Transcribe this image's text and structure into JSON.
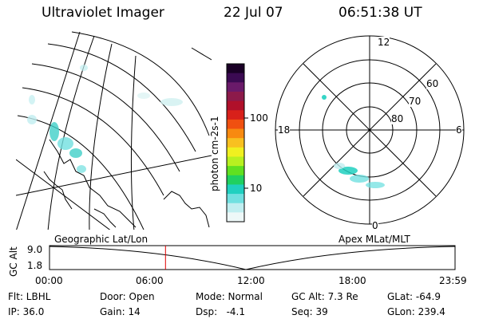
{
  "header": {
    "instrument": "Ultraviolet Imager",
    "date": "22 Jul 07",
    "time": "06:51:38 UT"
  },
  "colorbar": {
    "label": "photon cm-2s-1",
    "ticks": [
      "100",
      "10"
    ],
    "colors": [
      "#1a0026",
      "#3b0a52",
      "#6a1a6a",
      "#8c1a4a",
      "#b0102a",
      "#d8201a",
      "#f05010",
      "#f88a10",
      "#f8c020",
      "#f0f020",
      "#b8f020",
      "#60e020",
      "#20d060",
      "#20d0c0",
      "#70e0e0",
      "#c0eef0",
      "#eef8f8"
    ]
  },
  "polar_plot": {
    "mlt_labels": [
      "12",
      "18",
      "6",
      "0"
    ],
    "lat_labels": [
      "60",
      "70",
      "80"
    ]
  },
  "timeline": {
    "left_label": "Geographic Lat/Lon",
    "right_label": "Apex MLat/MLT",
    "axis_title": "GC Alt",
    "y_ticks": [
      "9.0",
      "1.8"
    ],
    "x_ticks": [
      "00:00",
      "06:00",
      "12:00",
      "18:00",
      "23:59"
    ],
    "marker_time_fraction": 0.286,
    "marker_color": "#e00000"
  },
  "footer": {
    "row1": {
      "filter": "Flt: LBHL",
      "door": "Door: Open",
      "mode": "Mode: Normal",
      "gc_alt": "GC Alt: 7.3 Re",
      "glat": "GLat: -64.9"
    },
    "row2": {
      "ip": "IP: 36.0",
      "gain": "Gain: 14",
      "dsp": "Dsp:   -4.1",
      "seq": "Seq: 39",
      "glon": "GLon: 239.4"
    }
  }
}
